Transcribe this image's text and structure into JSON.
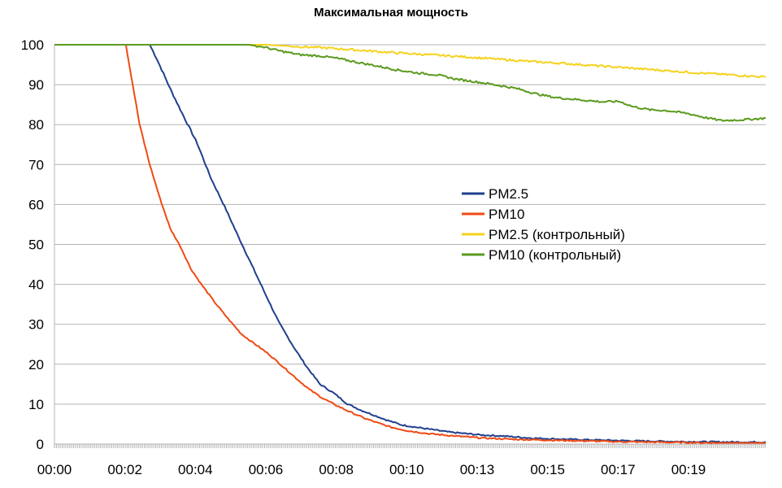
{
  "chart_data": {
    "type": "line",
    "title": "Максимальная мощность",
    "xlabel": "",
    "ylabel": "",
    "x_unit": "minutes",
    "xlim": [
      0,
      20.9
    ],
    "ylim": [
      0,
      100
    ],
    "y_ticks": [
      0,
      10,
      20,
      30,
      40,
      50,
      60,
      70,
      80,
      90,
      100
    ],
    "x_tick_labels": [
      {
        "label": "00:00",
        "x": 0
      },
      {
        "label": "00:02",
        "x": 2.07
      },
      {
        "label": "00:04",
        "x": 4.14
      },
      {
        "label": "00:06",
        "x": 6.21
      },
      {
        "label": "00:08",
        "x": 8.28
      },
      {
        "label": "00:10",
        "x": 10.35
      },
      {
        "label": "00:13",
        "x": 12.42
      },
      {
        "label": "00:15",
        "x": 14.49
      },
      {
        "label": "00:17",
        "x": 16.56
      },
      {
        "label": "00:19",
        "x": 18.63
      }
    ],
    "grid": "horizontal",
    "legend_position": "center-right",
    "series": [
      {
        "name": "PM2.5",
        "color": "#1f3f8c",
        "points": [
          [
            0,
            100
          ],
          [
            2.8,
            100
          ],
          [
            3.0,
            96.6
          ],
          [
            3.4,
            89
          ],
          [
            3.8,
            82
          ],
          [
            4.2,
            75.2
          ],
          [
            4.6,
            66.5
          ],
          [
            5.0,
            59.5
          ],
          [
            5.4,
            52
          ],
          [
            5.8,
            44.8
          ],
          [
            6.2,
            37.5
          ],
          [
            6.6,
            30.4
          ],
          [
            7.0,
            24.7
          ],
          [
            7.4,
            19.5
          ],
          [
            7.8,
            15
          ],
          [
            8.2,
            12.8
          ],
          [
            8.6,
            10.1
          ],
          [
            9.0,
            8.5
          ],
          [
            9.4,
            7.2
          ],
          [
            9.8,
            5.9
          ],
          [
            10.2,
            4.8
          ],
          [
            10.8,
            4.0
          ],
          [
            11.6,
            3.0
          ],
          [
            12.5,
            2.3
          ],
          [
            13.2,
            2.0
          ],
          [
            14.0,
            1.5
          ],
          [
            15.0,
            1.2
          ],
          [
            16.0,
            1.0
          ],
          [
            17.0,
            0.8
          ],
          [
            18.5,
            0.6
          ],
          [
            20.0,
            0.5
          ],
          [
            20.9,
            0.5
          ]
        ]
      },
      {
        "name": "PM10",
        "color": "#f04a14",
        "points": [
          [
            0,
            100
          ],
          [
            2.1,
            100
          ],
          [
            2.3,
            90
          ],
          [
            2.5,
            80
          ],
          [
            2.8,
            70
          ],
          [
            3.1,
            61.5
          ],
          [
            3.4,
            54
          ],
          [
            3.7,
            49.5
          ],
          [
            4.0,
            44
          ],
          [
            4.3,
            40.2
          ],
          [
            4.7,
            35.6
          ],
          [
            5.1,
            31.4
          ],
          [
            5.5,
            27.5
          ],
          [
            5.9,
            25
          ],
          [
            6.3,
            22.5
          ],
          [
            6.7,
            19.5
          ],
          [
            7.1,
            16.5
          ],
          [
            7.5,
            13.6
          ],
          [
            7.9,
            11.4
          ],
          [
            8.3,
            9.6
          ],
          [
            8.7,
            8.0
          ],
          [
            9.1,
            6.5
          ],
          [
            9.5,
            5.3
          ],
          [
            9.9,
            4.2
          ],
          [
            10.4,
            3.3
          ],
          [
            11.0,
            2.6
          ],
          [
            11.8,
            2.0
          ],
          [
            12.6,
            1.5
          ],
          [
            13.5,
            1.2
          ],
          [
            14.5,
            1.0
          ],
          [
            15.5,
            0.8
          ],
          [
            16.5,
            0.6
          ],
          [
            17.5,
            0.5
          ],
          [
            18.5,
            0.4
          ],
          [
            19.5,
            0.3
          ],
          [
            20.9,
            0.3
          ]
        ]
      },
      {
        "name": "PM2.5 (контрольный)",
        "color": "#f5d21c",
        "points": [
          [
            0,
            100
          ],
          [
            6.2,
            100
          ],
          [
            7.0,
            99.6
          ],
          [
            8.0,
            99.2
          ],
          [
            9.0,
            98.6
          ],
          [
            10.0,
            98.0
          ],
          [
            11.0,
            97.5
          ],
          [
            12.0,
            97.0
          ],
          [
            13.0,
            96.4
          ],
          [
            14.0,
            95.8
          ],
          [
            15.0,
            95.3
          ],
          [
            16.0,
            94.7
          ],
          [
            17.0,
            94.1
          ],
          [
            18.0,
            93.5
          ],
          [
            19.0,
            92.9
          ],
          [
            20.0,
            92.4
          ],
          [
            20.9,
            91.9
          ]
        ]
      },
      {
        "name": "PM10 (контрольный)",
        "color": "#5a9a1e",
        "points": [
          [
            0,
            100
          ],
          [
            5.7,
            100
          ],
          [
            6.1,
            99.5
          ],
          [
            6.6,
            98.5
          ],
          [
            7.2,
            97.5
          ],
          [
            7.8,
            97.2
          ],
          [
            8.3,
            96.6
          ],
          [
            8.9,
            95.6
          ],
          [
            9.4,
            94.8
          ],
          [
            10.0,
            93.8
          ],
          [
            10.6,
            93.0
          ],
          [
            11.2,
            92.5
          ],
          [
            11.8,
            91.4
          ],
          [
            12.4,
            90.7
          ],
          [
            13.0,
            89.9
          ],
          [
            13.6,
            89.0
          ],
          [
            14.2,
            87.6
          ],
          [
            14.7,
            86.8
          ],
          [
            15.2,
            86.4
          ],
          [
            15.7,
            86.0
          ],
          [
            16.1,
            85.7
          ],
          [
            16.6,
            85.8
          ],
          [
            17.0,
            84.5
          ],
          [
            17.5,
            83.7
          ],
          [
            18.0,
            83.5
          ],
          [
            18.6,
            82.8
          ],
          [
            19.1,
            81.8
          ],
          [
            19.6,
            81.0
          ],
          [
            20.2,
            81.2
          ],
          [
            20.9,
            81.6
          ]
        ]
      }
    ]
  }
}
